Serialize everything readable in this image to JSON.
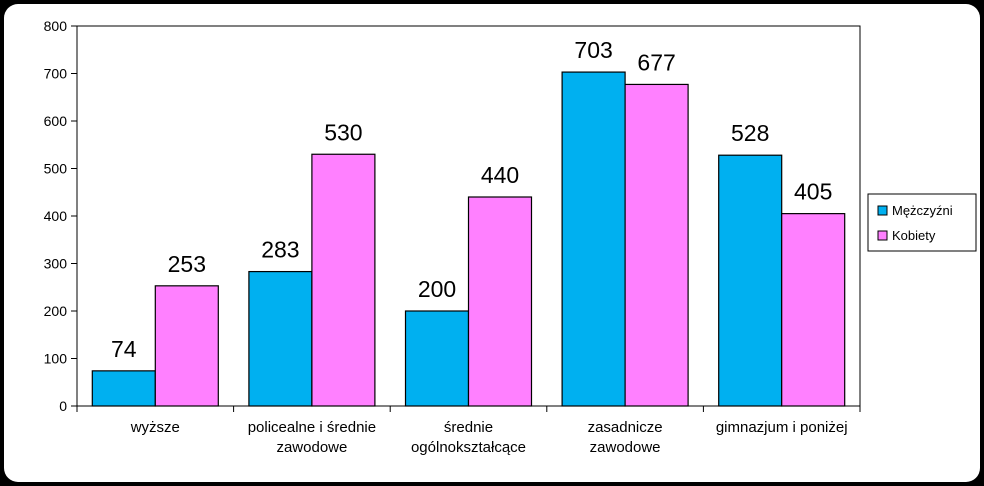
{
  "chart_data": {
    "type": "bar",
    "categories": [
      [
        "wyższe"
      ],
      [
        "policealne i średnie",
        "zawodowe"
      ],
      [
        "średnie",
        "ogólnokształcące"
      ],
      [
        "zasadnicze",
        "zawodowe"
      ],
      [
        "gimnazjum i poniżej"
      ]
    ],
    "series": [
      {
        "name": "Mężczyźni",
        "values": [
          74,
          283,
          200,
          703,
          528
        ],
        "color": "#00B0F0"
      },
      {
        "name": "Kobiety",
        "values": [
          253,
          530,
          440,
          677,
          405
        ],
        "color": "#FF80FF"
      }
    ],
    "ylim": [
      0,
      800
    ],
    "yticks": [
      0,
      100,
      200,
      300,
      400,
      500,
      600,
      700,
      800
    ],
    "grid": false,
    "legend_position": "right",
    "plot_background": "#FFFFFF"
  }
}
